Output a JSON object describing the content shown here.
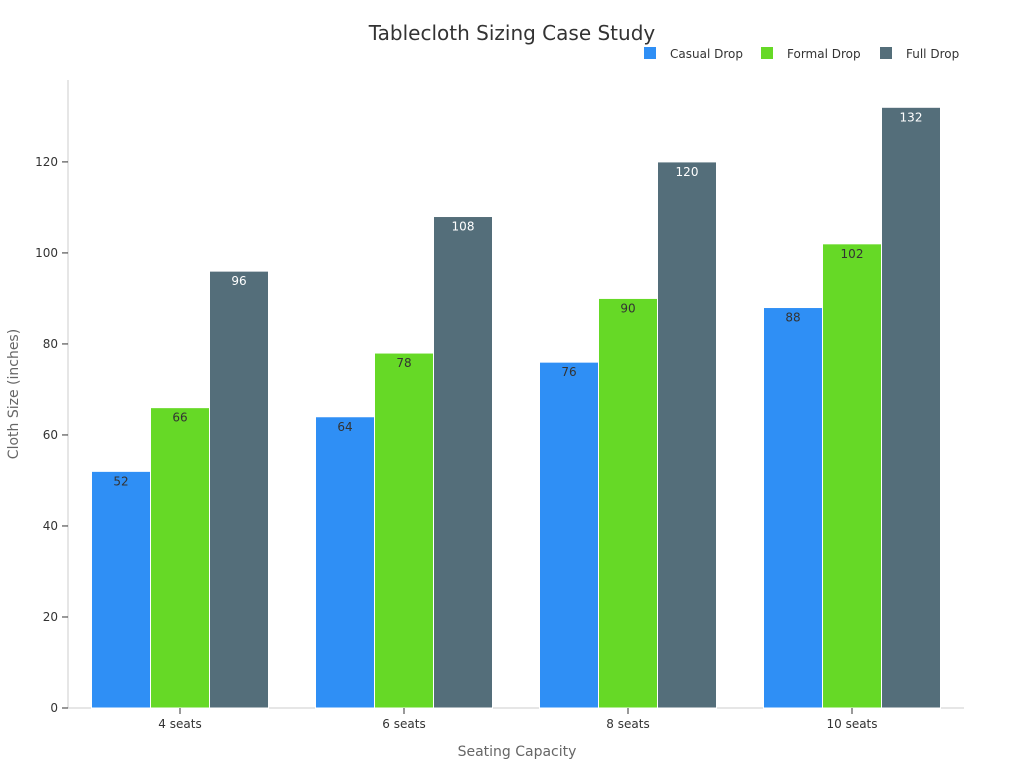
{
  "chart_data": {
    "type": "bar",
    "title": "Tablecloth Sizing Case Study",
    "xlabel": "Seating Capacity",
    "ylabel": "Cloth Size (inches)",
    "categories": [
      "4 seats",
      "6 seats",
      "8 seats",
      "10 seats"
    ],
    "series": [
      {
        "name": "Casual Drop",
        "color": "#2f8ff5",
        "label_color": "#333333",
        "values": [
          52,
          64,
          76,
          88
        ]
      },
      {
        "name": "Formal Drop",
        "color": "#66d926",
        "label_color": "#333333",
        "values": [
          66,
          78,
          90,
          102
        ]
      },
      {
        "name": "Full Drop",
        "color": "#546e7a",
        "label_color": "#ffffff",
        "values": [
          96,
          108,
          120,
          132
        ]
      }
    ],
    "ylim": [
      0,
      138
    ],
    "yticks": [
      0,
      20,
      40,
      60,
      80,
      100,
      120
    ],
    "grid": false,
    "legend_position": "top-right",
    "data_labels": true
  }
}
